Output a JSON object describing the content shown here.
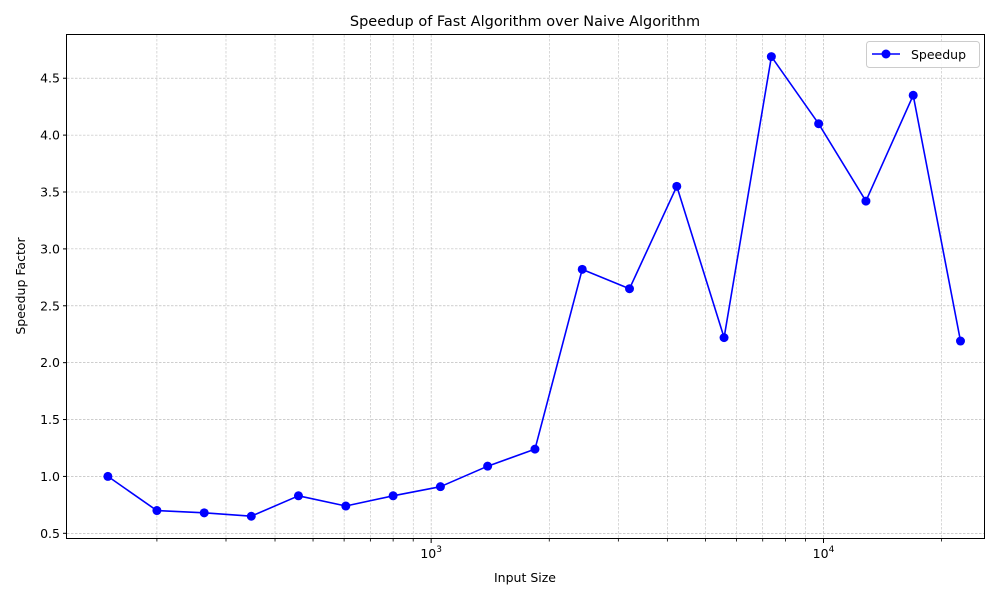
{
  "chart_data": {
    "type": "line",
    "title": "Speedup of Fast Algorithm over Naive Algorithm",
    "xlabel": "Input Size",
    "ylabel": "Speedup Factor",
    "xscale": "log",
    "xlim": [
      118,
      25800
    ],
    "ylim": [
      0.45,
      4.88
    ],
    "x_tick_labels": [
      {
        "value": 1000,
        "base": "10",
        "exp": "3"
      },
      {
        "value": 10000,
        "base": "10",
        "exp": "4"
      }
    ],
    "y_ticks": [
      0.5,
      1.0,
      1.5,
      2.0,
      2.5,
      3.0,
      3.5,
      4.0,
      4.5
    ],
    "y_tick_labels": [
      "0.5",
      "1.0",
      "1.5",
      "2.0",
      "2.5",
      "3.0",
      "3.5",
      "4.0",
      "4.5"
    ],
    "grid": true,
    "legend_position": "top-right",
    "series": [
      {
        "name": "Speedup",
        "color": "#0000ff",
        "marker": "circle",
        "x": [
          150,
          200,
          264,
          348,
          459,
          606,
          800,
          1056,
          1393,
          1839,
          2427,
          3203,
          4227,
          5579,
          7364,
          9719,
          12827,
          16929,
          22344
        ],
        "y": [
          1.0,
          0.7,
          0.68,
          0.65,
          0.83,
          0.74,
          0.83,
          0.91,
          1.09,
          1.24,
          2.82,
          2.65,
          3.55,
          2.22,
          4.69,
          4.1,
          3.42,
          4.35,
          2.19
        ]
      }
    ]
  }
}
